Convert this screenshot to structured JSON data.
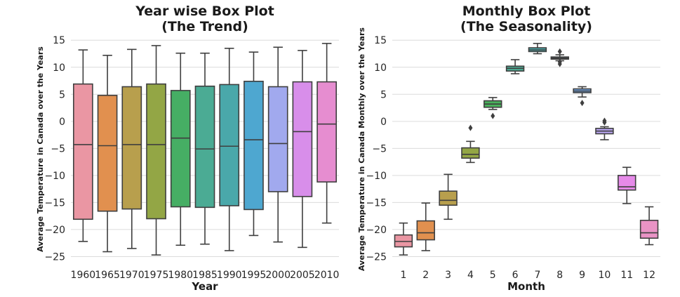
{
  "chart_data": [
    {
      "type": "box",
      "title": [
        "Year wise Box Plot",
        "(The Trend)"
      ],
      "xlabel": "Year",
      "ylabel": "Average Temperature in Canada over the Years",
      "ylim": [
        -26.5,
        16.2
      ],
      "yticks": [
        15,
        10,
        5,
        0,
        -5,
        -10,
        -15,
        -20,
        -25
      ],
      "grid": true,
      "categories": [
        "1960",
        "1965",
        "1970",
        "1975",
        "1980",
        "1985",
        "1990",
        "1995",
        "2000",
        "2005",
        "2010"
      ],
      "colors": [
        "#ea96a3",
        "#e1904f",
        "#b89f4d",
        "#93a645",
        "#46ae64",
        "#4bab94",
        "#4aa8aa",
        "#4ea7d0",
        "#a1a9ee",
        "#d88eea",
        "#e68dd0"
      ],
      "boxes": [
        {
          "min": -22.2,
          "q1": -18.1,
          "median": -4.3,
          "q3": 6.9,
          "max": 13.2,
          "outliers": []
        },
        {
          "min": -24.1,
          "q1": -16.6,
          "median": -4.5,
          "q3": 4.8,
          "max": 12.2,
          "outliers": []
        },
        {
          "min": -23.5,
          "q1": -16.2,
          "median": -4.3,
          "q3": 6.4,
          "max": 13.3,
          "outliers": []
        },
        {
          "min": -24.7,
          "q1": -18.0,
          "median": -4.3,
          "q3": 6.9,
          "max": 14.0,
          "outliers": []
        },
        {
          "min": -22.9,
          "q1": -15.8,
          "median": -3.1,
          "q3": 5.7,
          "max": 12.6,
          "outliers": []
        },
        {
          "min": -22.7,
          "q1": -15.9,
          "median": -5.1,
          "q3": 6.5,
          "max": 12.6,
          "outliers": []
        },
        {
          "min": -23.9,
          "q1": -15.6,
          "median": -4.6,
          "q3": 6.8,
          "max": 13.5,
          "outliers": []
        },
        {
          "min": -21.1,
          "q1": -16.3,
          "median": -3.4,
          "q3": 7.4,
          "max": 12.8,
          "outliers": []
        },
        {
          "min": -22.3,
          "q1": -13.0,
          "median": -4.1,
          "q3": 6.4,
          "max": 13.7,
          "outliers": []
        },
        {
          "min": -23.3,
          "q1": -13.9,
          "median": -1.9,
          "q3": 7.3,
          "max": 13.1,
          "outliers": []
        },
        {
          "min": -18.8,
          "q1": -11.2,
          "median": -0.5,
          "q3": 7.3,
          "max": 14.4,
          "outliers": []
        }
      ]
    },
    {
      "type": "box",
      "title": [
        "Monthly Box Plot",
        "(The Seasonality)"
      ],
      "xlabel": "Month",
      "ylabel": "Average Temperature in Canada Monthly over the Years",
      "ylim": [
        -26.5,
        16.2
      ],
      "yticks": [
        15,
        10,
        5,
        0,
        -5,
        -10,
        -15,
        -20,
        -25
      ],
      "grid": true,
      "categories": [
        "1",
        "2",
        "3",
        "4",
        "5",
        "6",
        "7",
        "8",
        "9",
        "10",
        "11",
        "12"
      ],
      "colors": [
        "#ea96a3",
        "#e1904f",
        "#b89f4d",
        "#93a645",
        "#49b15c",
        "#4caf96",
        "#4aabab",
        "#4ca9c9",
        "#73a7e8",
        "#b9a5f1",
        "#e68ae9",
        "#e993c5"
      ],
      "boxes": [
        {
          "min": -24.7,
          "q1": -23.2,
          "median": -22.2,
          "q3": -21.0,
          "max": -18.8,
          "outliers": []
        },
        {
          "min": -23.9,
          "q1": -21.9,
          "median": -20.6,
          "q3": -18.4,
          "max": -15.1,
          "outliers": []
        },
        {
          "min": -18.1,
          "q1": -15.5,
          "median": -14.6,
          "q3": -12.9,
          "max": -9.8,
          "outliers": []
        },
        {
          "min": -7.6,
          "q1": -6.8,
          "median": -6.1,
          "q3": -4.9,
          "max": -3.7,
          "outliers": [
            -1.2
          ]
        },
        {
          "min": 2.2,
          "q1": 2.6,
          "median": 3.2,
          "q3": 3.8,
          "max": 4.4,
          "outliers": [
            1.0
          ]
        },
        {
          "min": 8.8,
          "q1": 9.3,
          "median": 9.8,
          "q3": 10.2,
          "max": 11.4,
          "outliers": []
        },
        {
          "min": 12.5,
          "q1": 12.9,
          "median": 13.2,
          "q3": 13.6,
          "max": 14.4,
          "outliers": []
        },
        {
          "min": 11.2,
          "q1": 11.5,
          "median": 11.7,
          "q3": 11.9,
          "max": 12.3,
          "outliers": [
            10.6,
            11.0,
            12.9
          ]
        },
        {
          "min": 4.5,
          "q1": 5.3,
          "median": 5.6,
          "q3": 6.0,
          "max": 6.4,
          "outliers": [
            3.4
          ]
        },
        {
          "min": -3.4,
          "q1": -2.3,
          "median": -1.8,
          "q3": -1.3,
          "max": -1.0,
          "outliers": [
            -0.2,
            0.1
          ]
        },
        {
          "min": -15.2,
          "q1": -12.7,
          "median": -12.1,
          "q3": -10.0,
          "max": -8.5,
          "outliers": []
        },
        {
          "min": -22.8,
          "q1": -21.6,
          "median": -20.6,
          "q3": -18.3,
          "max": -15.8,
          "outliers": []
        }
      ]
    }
  ]
}
